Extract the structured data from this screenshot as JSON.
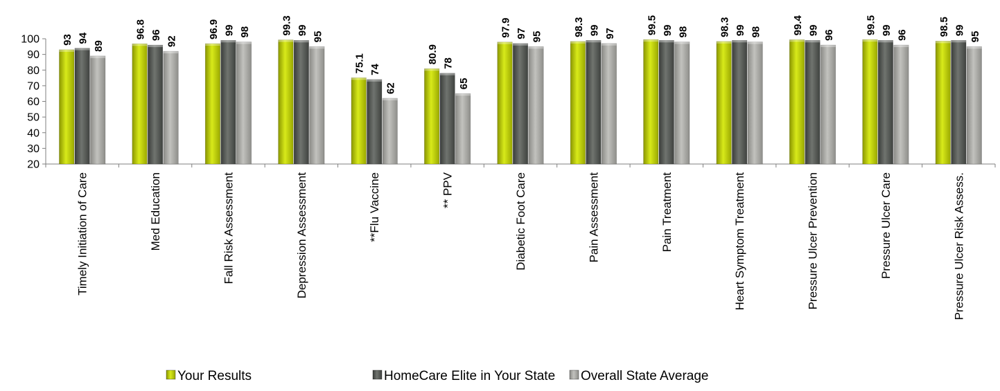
{
  "chart_data": {
    "type": "bar",
    "categories": [
      "Timely Initiation of Care",
      "Med Education",
      "Fall Risk Assessment",
      "Depression Assessment",
      "**Flu Vaccine",
      "** PPV",
      "Diabetic Foot Care",
      "Pain Assessment",
      "Pain Treatment",
      "Heart Symptom Treatment",
      "Pressure Ulcer Prevention",
      "Pressure Ulcer Care",
      "Pressure Ulcer Risk Assess."
    ],
    "series": [
      {
        "name": "Your Results",
        "color": "#c4d600",
        "values": [
          93,
          96.8,
          96.9,
          99.3,
          75.1,
          80.9,
          97.9,
          98.3,
          99.5,
          98.3,
          99.4,
          99.5,
          98.5
        ],
        "labels": [
          "93",
          "96.8",
          "96.9",
          "99.3",
          "75.1",
          "80.9",
          "97.9",
          "98.3",
          "99.5",
          "98.3",
          "99.4",
          "99.5",
          "98.5"
        ]
      },
      {
        "name": "HomeCare Elite in Your State",
        "color": "#5f635f",
        "values": [
          94,
          96,
          99,
          99,
          74,
          78,
          97,
          99,
          99,
          99,
          99,
          99,
          99
        ],
        "labels": [
          "94",
          "96",
          "99",
          "99",
          "74",
          "78",
          "97",
          "99",
          "99",
          "99",
          "99",
          "99",
          "99"
        ]
      },
      {
        "name": "Overall State Average",
        "color": "#a8a8a4",
        "values": [
          89,
          92,
          98,
          95,
          62,
          65,
          95,
          97,
          98,
          98,
          96,
          96,
          95
        ],
        "labels": [
          "89",
          "92",
          "98",
          "95",
          "62",
          "65",
          "95",
          "97",
          "98",
          "98",
          "96",
          "96",
          "95"
        ]
      }
    ],
    "y_ticks": [
      "20",
      "30",
      "40",
      "50",
      "60",
      "70",
      "80",
      "90",
      "100"
    ],
    "ylim": [
      20,
      100
    ],
    "grid": false,
    "legend_position": "bottom",
    "title": "",
    "xlabel": "",
    "ylabel": ""
  }
}
